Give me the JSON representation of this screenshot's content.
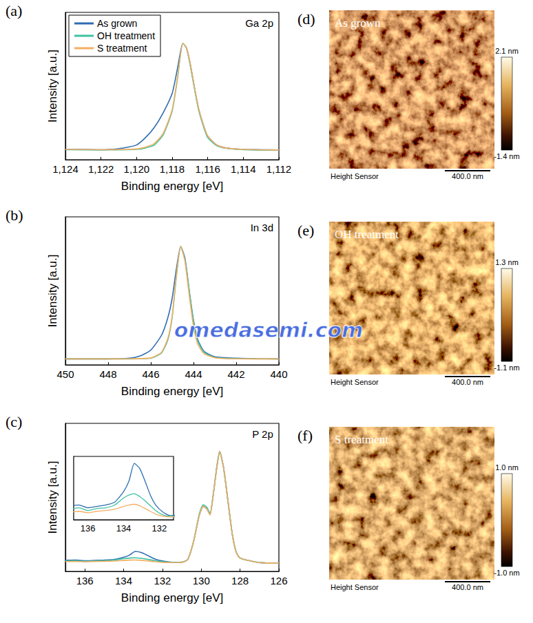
{
  "chart_data": [
    {
      "type": "line",
      "label": "(a)",
      "title": "Ga 2p",
      "xlabel": "Binding energy [eV]",
      "ylabel": "Intensity [a.u.]",
      "xlim": [
        1124,
        1112
      ],
      "xticks": [
        1124,
        1122,
        1120,
        1118,
        1116,
        1114,
        1112
      ],
      "ylim": [
        0,
        1
      ],
      "tick_labels": "x",
      "legend": "upper left",
      "series": [
        {
          "name": "As grown",
          "color": "#2e6db0",
          "x": [
            1124,
            1123,
            1122,
            1121,
            1120.5,
            1120,
            1119.5,
            1119,
            1118.5,
            1118,
            1117.7,
            1117.4,
            1117.2,
            1117,
            1116.7,
            1116.5,
            1116.2,
            1116,
            1115.5,
            1115,
            1114,
            1113,
            1112
          ],
          "values": [
            0.07,
            0.07,
            0.068,
            0.075,
            0.085,
            0.1,
            0.15,
            0.22,
            0.32,
            0.45,
            0.62,
            0.79,
            0.76,
            0.66,
            0.46,
            0.34,
            0.22,
            0.16,
            0.1,
            0.08,
            0.07,
            0.068,
            0.066
          ]
        },
        {
          "name": "OH treatment",
          "color": "#3cc2a0",
          "x": [
            1124,
            1122,
            1121,
            1120,
            1119.5,
            1119,
            1118.5,
            1118,
            1117.7,
            1117.4,
            1117.2,
            1117,
            1116.7,
            1116.5,
            1116.2,
            1116,
            1115.5,
            1115,
            1114,
            1112
          ],
          "values": [
            0.068,
            0.066,
            0.067,
            0.07,
            0.08,
            0.1,
            0.17,
            0.33,
            0.55,
            0.79,
            0.76,
            0.65,
            0.45,
            0.33,
            0.21,
            0.15,
            0.095,
            0.078,
            0.068,
            0.064
          ]
        },
        {
          "name": "S treatment",
          "color": "#f4ae62",
          "x": [
            1124,
            1122,
            1121,
            1120,
            1119.5,
            1119,
            1118.5,
            1118,
            1117.7,
            1117.4,
            1117.2,
            1117,
            1116.7,
            1116.5,
            1116.2,
            1116,
            1115.5,
            1115,
            1114,
            1112
          ],
          "values": [
            0.07,
            0.068,
            0.069,
            0.073,
            0.085,
            0.11,
            0.18,
            0.34,
            0.56,
            0.79,
            0.76,
            0.66,
            0.46,
            0.34,
            0.22,
            0.16,
            0.1,
            0.08,
            0.07,
            0.066
          ]
        }
      ]
    },
    {
      "type": "line",
      "label": "(b)",
      "title": "In 3d",
      "xlabel": "Binding energy [eV]",
      "ylabel": "Intensity [a.u.]",
      "xlim": [
        450,
        440
      ],
      "xticks": [
        450,
        448,
        446,
        444,
        442,
        440
      ],
      "ylim": [
        0,
        1
      ],
      "tick_labels": "x",
      "series": [
        {
          "name": "As grown",
          "color": "#2e6db0",
          "x": [
            450,
            449,
            448,
            447,
            446.5,
            446,
            445.5,
            445.2,
            445,
            444.8,
            444.6,
            444.4,
            444.2,
            444,
            443.8,
            443.5,
            443,
            442,
            441,
            440
          ],
          "values": [
            0.04,
            0.04,
            0.04,
            0.045,
            0.06,
            0.1,
            0.2,
            0.32,
            0.45,
            0.65,
            0.8,
            0.72,
            0.5,
            0.3,
            0.17,
            0.09,
            0.055,
            0.045,
            0.042,
            0.04
          ]
        },
        {
          "name": "OH treatment",
          "color": "#3cc2a0",
          "x": [
            450,
            448,
            447,
            446,
            445.5,
            445.2,
            445,
            444.8,
            444.6,
            444.4,
            444.2,
            444,
            443.8,
            443.5,
            443,
            442,
            440
          ],
          "values": [
            0.04,
            0.04,
            0.04,
            0.045,
            0.08,
            0.17,
            0.32,
            0.6,
            0.8,
            0.71,
            0.5,
            0.29,
            0.16,
            0.085,
            0.05,
            0.042,
            0.04
          ]
        },
        {
          "name": "S treatment",
          "color": "#f4ae62",
          "x": [
            450,
            448,
            447,
            446,
            445.5,
            445.2,
            445,
            444.8,
            444.6,
            444.4,
            444.2,
            444,
            443.8,
            443.5,
            443,
            442,
            440
          ],
          "values": [
            0.04,
            0.04,
            0.041,
            0.047,
            0.085,
            0.18,
            0.33,
            0.61,
            0.8,
            0.7,
            0.47,
            0.26,
            0.14,
            0.075,
            0.048,
            0.041,
            0.04
          ]
        }
      ]
    },
    {
      "type": "line",
      "label": "(c)",
      "title": "P 2p",
      "xlabel": "Binding energy [eV]",
      "ylabel": "Intensity [a.u.]",
      "xlim": [
        137,
        126
      ],
      "xticks": [
        136,
        134,
        132,
        130,
        128,
        126
      ],
      "ylim": [
        0,
        1
      ],
      "tick_labels": "x",
      "inset": {
        "xlim": [
          136.8,
          131.2
        ],
        "xticks": [
          136,
          134,
          132
        ],
        "ylim": [
          0.055,
          0.145
        ]
      },
      "series": [
        {
          "name": "As grown",
          "color": "#2e6db0",
          "x": [
            137,
            136.5,
            136,
            135.5,
            135,
            134.5,
            134,
            133.7,
            133.4,
            133.1,
            132.8,
            132.5,
            132.2,
            131.8,
            131.4,
            131,
            130.7,
            130.4,
            130.1,
            129.9,
            129.7,
            129.55,
            129.4,
            129.2,
            129.05,
            128.85,
            128.6,
            128.4,
            128.2,
            128,
            127,
            126
          ],
          "values": [
            0.075,
            0.076,
            0.072,
            0.074,
            0.076,
            0.08,
            0.095,
            0.11,
            0.135,
            0.128,
            0.11,
            0.09,
            0.076,
            0.066,
            0.061,
            0.062,
            0.08,
            0.2,
            0.38,
            0.44,
            0.42,
            0.385,
            0.5,
            0.7,
            0.81,
            0.7,
            0.45,
            0.25,
            0.13,
            0.09,
            0.06,
            0.055
          ]
        },
        {
          "name": "OH treatment",
          "color": "#3cc2a0",
          "x": [
            137,
            136.5,
            136,
            135.5,
            135,
            134.5,
            134,
            133.7,
            133.4,
            133.1,
            132.8,
            132.5,
            132.2,
            131.8,
            131.4,
            131,
            130.7,
            130.4,
            130.1,
            129.9,
            129.7,
            129.55,
            129.4,
            129.2,
            129.05,
            128.85,
            128.6,
            128.4,
            128.2,
            128,
            127,
            126
          ],
          "values": [
            0.07,
            0.072,
            0.068,
            0.071,
            0.072,
            0.076,
            0.086,
            0.09,
            0.092,
            0.088,
            0.082,
            0.075,
            0.068,
            0.062,
            0.06,
            0.061,
            0.08,
            0.2,
            0.39,
            0.45,
            0.43,
            0.39,
            0.5,
            0.71,
            0.81,
            0.7,
            0.45,
            0.25,
            0.13,
            0.09,
            0.06,
            0.055
          ]
        },
        {
          "name": "S treatment",
          "color": "#f4ae62",
          "x": [
            137,
            136.5,
            136,
            135.5,
            135,
            134.5,
            134,
            133.7,
            133.4,
            133.1,
            132.8,
            132.5,
            132.2,
            131.8,
            131.4,
            131,
            130.7,
            130.4,
            130.1,
            129.9,
            129.7,
            129.55,
            129.4,
            129.2,
            129.05,
            128.85,
            128.6,
            128.4,
            128.2,
            128,
            127,
            126
          ],
          "values": [
            0.066,
            0.067,
            0.065,
            0.067,
            0.068,
            0.07,
            0.074,
            0.076,
            0.077,
            0.075,
            0.071,
            0.067,
            0.063,
            0.06,
            0.059,
            0.06,
            0.079,
            0.2,
            0.38,
            0.44,
            0.42,
            0.38,
            0.5,
            0.7,
            0.81,
            0.7,
            0.45,
            0.25,
            0.13,
            0.09,
            0.06,
            0.055
          ]
        }
      ]
    }
  ],
  "afm_panels": [
    {
      "label": "(d)",
      "title": "As grown",
      "caption": "Height Sensor",
      "scale_bar": "400.0 nm",
      "colorbar": {
        "range": [
          -1.4,
          2.1
        ],
        "ticks": [
          {
            "value": 2.1,
            "label": "2.1 nm"
          },
          {
            "value": -1.4,
            "label": "-1.4 nm"
          }
        ]
      }
    },
    {
      "label": "(e)",
      "title": "OH treatment",
      "caption": "Height Sensor",
      "scale_bar": "400.0 nm",
      "colorbar": {
        "range": [
          -1.1,
          1.3
        ],
        "ticks": [
          {
            "value": 1.3,
            "label": "1.3 nm"
          },
          {
            "value": -1.1,
            "label": "-1.1 nm"
          }
        ]
      }
    },
    {
      "label": "(f)",
      "title": "S treatment",
      "caption": "Height Sensor",
      "scale_bar": "400.0 nm",
      "colorbar": {
        "range": [
          -1.0,
          1.0
        ],
        "ticks": [
          {
            "value": 1.0,
            "label": "1.0 nm"
          },
          {
            "value": -1.0,
            "label": "-1.0 nm"
          }
        ]
      }
    }
  ],
  "watermark": "omedasemi.com"
}
